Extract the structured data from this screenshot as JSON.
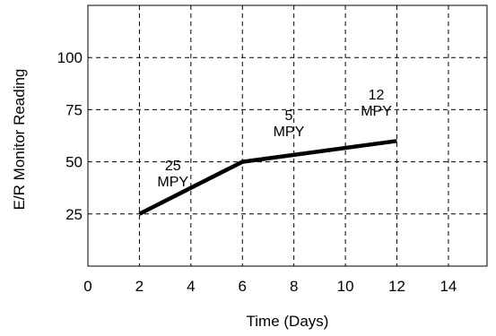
{
  "chart_data": {
    "type": "line",
    "xlabel": "Time (Days)",
    "ylabel": "E/R Monitor Reading",
    "xlim": [
      0,
      15.5
    ],
    "ylim": [
      0,
      125
    ],
    "xticks": [
      0,
      2,
      4,
      6,
      8,
      10,
      12,
      14
    ],
    "yticks": [
      25,
      50,
      75,
      100
    ],
    "grid": true,
    "series": [
      {
        "x": [
          2,
          6,
          12
        ],
        "y": [
          25,
          50,
          60
        ]
      }
    ],
    "annotations": [
      {
        "lines": [
          "25",
          "MPY"
        ],
        "x": 3.3,
        "y": 46
      },
      {
        "lines": [
          "5",
          "MPY"
        ],
        "x": 7.8,
        "y": 70
      },
      {
        "lines": [
          "12",
          "MPY"
        ],
        "x": 11.2,
        "y": 80
      }
    ],
    "colors": {
      "line": "#000000",
      "grid": "#000000",
      "axis": "#000000"
    }
  }
}
